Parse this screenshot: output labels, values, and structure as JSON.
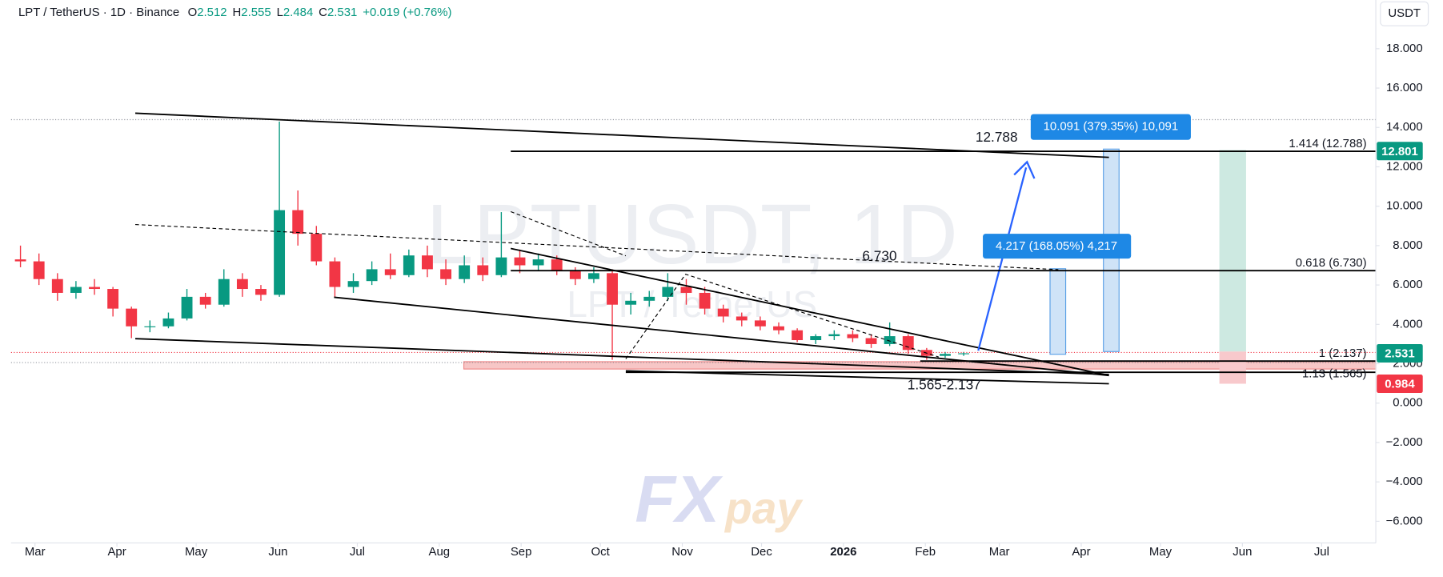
{
  "header": {
    "symbol": "LPT / TetherUS · 1D · Binance",
    "ohlc": [
      {
        "label": "O",
        "value": 2.512
      },
      {
        "label": "H",
        "value": 2.555
      },
      {
        "label": "L",
        "value": 2.484
      },
      {
        "label": "C",
        "value": 2.531
      }
    ],
    "change": "+0.019 (+0.76%)"
  },
  "currency": "USDT",
  "watermark": {
    "title": "LPTUSDT, 1D",
    "subtitle": "LPT / TetherUS"
  },
  "logo": [
    "FX",
    "pay"
  ],
  "chart_data": {
    "type": "candlestick",
    "x": [
      3.5,
      10.5,
      17.5,
      24.5,
      31.5,
      38.5,
      45.5,
      52.5,
      59.5,
      66.5,
      73.5,
      80.5,
      87.5,
      94.5,
      101.5,
      108.5,
      115.5,
      122.5,
      129.5,
      136.5,
      143.5,
      150.5,
      157.5,
      164.5,
      171.5,
      178.5,
      185.5,
      192.5,
      199.5,
      206.5,
      213.5,
      220.5,
      227.5,
      234.5,
      241.5,
      248.5,
      255.5,
      262.5,
      269.5,
      276.5,
      283.5,
      290.5,
      297.5,
      304.5,
      311.5,
      318.5,
      325.5,
      332.5,
      339.5,
      346.5,
      353.5,
      360.5
    ],
    "open": [
      7.3,
      7.2,
      6.3,
      5.6,
      5.9,
      5.8,
      4.8,
      3.9,
      3.9,
      4.3,
      5.4,
      5.0,
      6.3,
      5.8,
      5.5,
      9.8,
      8.6,
      7.2,
      5.9,
      6.2,
      6.8,
      6.5,
      7.5,
      6.8,
      6.3,
      7.0,
      6.5,
      7.4,
      7.0,
      7.3,
      6.7,
      6.3,
      6.6,
      5.0,
      5.2,
      5.4,
      5.9,
      5.6,
      4.8,
      4.4,
      4.2,
      3.9,
      3.7,
      3.2,
      3.4,
      3.5,
      3.3,
      3.0,
      3.4,
      2.7,
      2.4,
      2.5
    ],
    "high": [
      8.0,
      7.6,
      6.6,
      6.2,
      6.3,
      5.9,
      4.9,
      4.2,
      4.6,
      5.8,
      5.6,
      6.8,
      6.6,
      6.0,
      14.3,
      10.8,
      9.0,
      7.4,
      6.6,
      7.2,
      7.6,
      7.8,
      8.0,
      7.3,
      7.5,
      7.4,
      9.7,
      7.8,
      7.6,
      7.5,
      6.9,
      6.9,
      6.8,
      5.6,
      5.7,
      6.6,
      6.3,
      5.9,
      5.0,
      4.6,
      4.4,
      4.1,
      3.8,
      3.5,
      3.7,
      3.7,
      3.5,
      4.1,
      3.5,
      2.8,
      2.6,
      2.6
    ],
    "low": [
      6.9,
      6.0,
      5.2,
      5.3,
      5.5,
      4.4,
      3.3,
      3.6,
      3.8,
      4.2,
      4.8,
      4.9,
      5.4,
      5.2,
      5.4,
      8.0,
      7.0,
      5.4,
      5.6,
      6.0,
      6.3,
      6.4,
      6.4,
      6.0,
      6.1,
      6.2,
      6.4,
      6.6,
      6.7,
      6.5,
      6.0,
      6.1,
      2.2,
      4.5,
      4.9,
      5.2,
      5.0,
      4.5,
      4.1,
      3.9,
      3.7,
      3.5,
      3.1,
      3.0,
      3.2,
      3.1,
      2.8,
      2.9,
      2.5,
      2.2,
      2.3,
      2.4
    ],
    "close": [
      7.2,
      6.3,
      5.6,
      5.9,
      5.8,
      4.8,
      3.9,
      3.9,
      4.3,
      5.4,
      5.0,
      6.3,
      5.8,
      5.5,
      9.8,
      8.6,
      7.2,
      5.9,
      6.2,
      6.8,
      6.5,
      7.5,
      6.8,
      6.3,
      7.0,
      6.5,
      7.4,
      7.0,
      7.3,
      6.7,
      6.3,
      6.6,
      5.0,
      5.2,
      5.4,
      5.9,
      5.6,
      4.8,
      4.4,
      4.2,
      3.9,
      3.7,
      3.2,
      3.4,
      3.5,
      3.3,
      3.0,
      3.4,
      2.7,
      2.4,
      2.5,
      2.531
    ],
    "up_color": "#089981",
    "down_color": "#f23645",
    "xlim": [
      0,
      516.5
    ],
    "ylim": [
      -7.1,
      19.07
    ],
    "xticks": [
      {
        "value": 9,
        "label": "Mar"
      },
      {
        "value": 40,
        "label": "Apr"
      },
      {
        "value": 70,
        "label": "May"
      },
      {
        "value": 101,
        "label": "Jun"
      },
      {
        "value": 131,
        "label": "Jul"
      },
      {
        "value": 162,
        "label": "Aug"
      },
      {
        "value": 193,
        "label": "Sep"
      },
      {
        "value": 223,
        "label": "Oct"
      },
      {
        "value": 254,
        "label": "Nov"
      },
      {
        "value": 284,
        "label": "Dec"
      },
      {
        "value": 315,
        "label": "2026"
      },
      {
        "value": 346,
        "label": "Feb"
      },
      {
        "value": 374,
        "label": "Mar"
      },
      {
        "value": 405,
        "label": "Apr"
      },
      {
        "value": 435,
        "label": "May"
      },
      {
        "value": 466,
        "label": "Jun"
      },
      {
        "value": 496,
        "label": "Jul"
      }
    ],
    "yticks": [
      {
        "value": 18,
        "label": "18.000"
      },
      {
        "value": 16,
        "label": "16.000"
      },
      {
        "value": 14,
        "label": "14.000"
      },
      {
        "value": 12,
        "label": "12.000"
      },
      {
        "value": 10,
        "label": "10.000"
      },
      {
        "value": 8,
        "label": "8.000"
      },
      {
        "value": 6,
        "label": "6.000"
      },
      {
        "value": 4,
        "label": "4.000"
      },
      {
        "value": 2,
        "label": "2.000"
      },
      {
        "value": 0,
        "label": "0.000"
      },
      {
        "value": -2,
        "label": "−2.000"
      },
      {
        "value": -4,
        "label": "−4.000"
      },
      {
        "value": -6,
        "label": "−6.000"
      }
    ],
    "levels": [
      {
        "value": 12.788,
        "label": "1.414 (12.788)"
      },
      {
        "value": 6.73,
        "label": "0.618 (6.730)"
      },
      {
        "value": 2.137,
        "label": "1 (2.137)"
      },
      {
        "value": 1.565,
        "label": "1.13 (1.565)"
      }
    ],
    "annotations": [
      "12.788",
      "6.730",
      "1.565-2.137",
      "10.091 (379.35%) 10,091",
      "4.217 (168.05%) 4,217"
    ],
    "price_labels": [
      {
        "value": 12.801,
        "color": "#089981"
      },
      {
        "value": 2.531,
        "color": "#089981"
      },
      {
        "value": 0.984,
        "color": "#f23645"
      }
    ]
  }
}
